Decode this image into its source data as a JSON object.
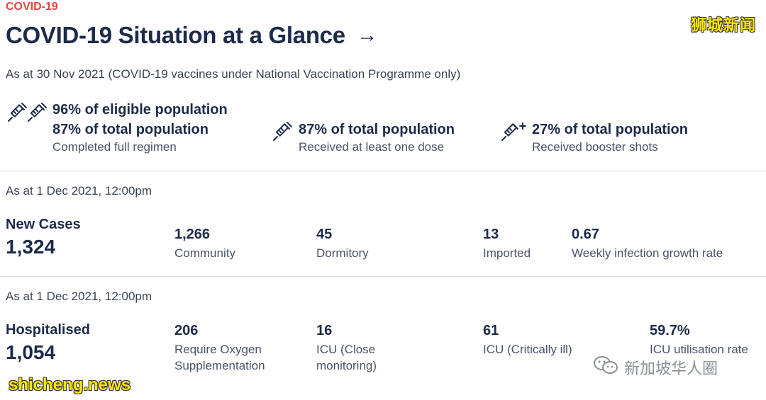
{
  "header": {
    "eyebrow": "COVID-19",
    "title": "COVID-19 Situation at a Glance",
    "arrow": "→"
  },
  "vaccination": {
    "as_of": "As at 30 Nov 2021 (COVID-19 vaccines under National Vaccination Programme only)",
    "full_regimen": {
      "line1": "96% of eligible population",
      "line2": "87% of total population",
      "caption": "Completed full regimen",
      "icon": "double-syringe-icon"
    },
    "one_dose": {
      "line1": "87% of total population",
      "caption": "Received at least one dose",
      "icon": "syringe-icon"
    },
    "booster": {
      "line1": "27% of total population",
      "caption": "Received booster shots",
      "icon": "syringe-plus-icon"
    }
  },
  "cases": {
    "as_of": "As at 1 Dec 2021, 12:00pm",
    "label": "New Cases",
    "total": "1,324",
    "stats": [
      {
        "value": "1,266",
        "label": "Community"
      },
      {
        "value": "45",
        "label": "Dormitory"
      },
      {
        "value": "13",
        "label": "Imported"
      },
      {
        "value": "0.67",
        "label": "Weekly infection growth rate"
      }
    ]
  },
  "hospital": {
    "as_of": "As at 1 Dec 2021, 12:00pm",
    "label": "Hospitalised",
    "total": "1,054",
    "stats": [
      {
        "value": "206",
        "label": "Require Oxygen Supplementation"
      },
      {
        "value": "16",
        "label": "ICU (Close monitoring)"
      },
      {
        "value": "61",
        "label": "ICU (Critically ill)"
      },
      {
        "value": "59.7%",
        "label": "ICU utilisation rate"
      }
    ]
  },
  "watermarks": {
    "top": "狮城新闻",
    "bottom": "shicheng.news",
    "wechat": "新加坡华人圈"
  },
  "colors": {
    "accent": "#e8433f",
    "navy": "#1c2a4a",
    "divider": "#d9dde3",
    "watermark": "#ffe600"
  }
}
